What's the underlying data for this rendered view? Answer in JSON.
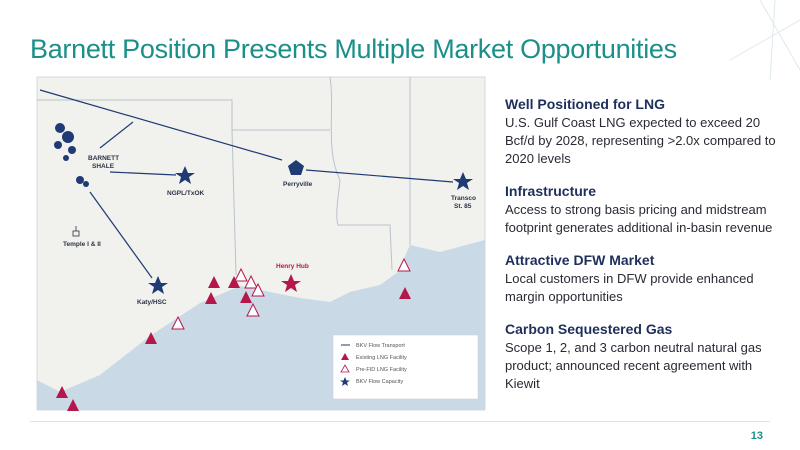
{
  "title": "Barnett Position Presents Multiple Market Opportunities",
  "map": {
    "labels": {
      "barnett": [
        "BARNETT",
        "SHALE"
      ],
      "ngpl": "NGPL/TxOK",
      "temple": "Temple I & II",
      "katy": "Katy/HSC",
      "henry_hub": "Henry Hub",
      "perryville": "Perryville",
      "transco": [
        "Transco",
        "St. 85"
      ]
    }
  },
  "legend": [
    "BKV Flow Transport",
    "Existing LNG Facility",
    "Pre-FID LNG Facility",
    "BKV Flow Capacity"
  ],
  "sections": [
    {
      "heading": "Well Positioned for LNG",
      "body": "U.S. Gulf Coast LNG expected to exceed 20 Bcf/d by 2028, representing >2.0x compared to 2020 levels"
    },
    {
      "heading": "Infrastructure",
      "body": "Access to strong basis pricing and midstream footprint generates additional in-basin revenue"
    },
    {
      "heading": "Attractive DFW Market",
      "body": "Local customers in DFW provide enhanced margin opportunities"
    },
    {
      "heading": "Carbon Sequestered Gas",
      "body": "Scope 1, 2, and 3 carbon neutral natural gas product; announced recent agreement with Kiewit"
    }
  ],
  "page_number": "13"
}
